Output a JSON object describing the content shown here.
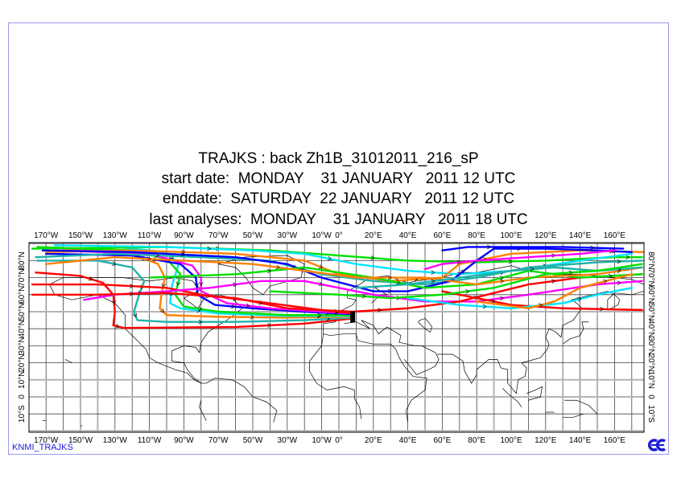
{
  "title": {
    "line1": "TRAJKS : back Zh1B_31012011_216_sP",
    "line2": "start date:  MONDAY    31 JANUARY   2011 12 UTC",
    "line3": "enddate:  SATURDAY  22 JANUARY   2011 12 UTC",
    "line4": "last analyses:  MONDAY    31 JANUARY   2011 18 UTC"
  },
  "footer": {
    "label": "KNMI_TRAJKS",
    "logo_icon": "ecmwf-logo-icon",
    "logo_color": "#1a1adc"
  },
  "map": {
    "lon_range": [
      -180,
      177
    ],
    "lat_range": [
      -20,
      90
    ],
    "lon_labels": [
      {
        "lon": -170,
        "text": "170°W"
      },
      {
        "lon": -150,
        "text": "150°W"
      },
      {
        "lon": -130,
        "text": "130°W"
      },
      {
        "lon": -110,
        "text": "110°W"
      },
      {
        "lon": -90,
        "text": "90°W"
      },
      {
        "lon": -70,
        "text": "70°W"
      },
      {
        "lon": -50,
        "text": "50°W"
      },
      {
        "lon": -30,
        "text": "30°W"
      },
      {
        "lon": -10,
        "text": "10°W"
      },
      {
        "lon": 0,
        "text": "0°"
      },
      {
        "lon": 20,
        "text": "20°E"
      },
      {
        "lon": 40,
        "text": "40°E"
      },
      {
        "lon": 60,
        "text": "60°E"
      },
      {
        "lon": 80,
        "text": "80°E"
      },
      {
        "lon": 100,
        "text": "100°E"
      },
      {
        "lon": 120,
        "text": "120°E"
      },
      {
        "lon": 140,
        "text": "140°E"
      },
      {
        "lon": 160,
        "text": "160°E"
      }
    ],
    "lat_labels": [
      {
        "lat": 80,
        "text": "80°N"
      },
      {
        "lat": 70,
        "text": "70°N"
      },
      {
        "lat": 60,
        "text": "60°N"
      },
      {
        "lat": 50,
        "text": "50°N"
      },
      {
        "lat": 40,
        "text": "40°N"
      },
      {
        "lat": 30,
        "text": "30°N"
      },
      {
        "lat": 20,
        "text": "20°N"
      },
      {
        "lat": 10,
        "text": "10°N"
      },
      {
        "lat": 0,
        "text": "0"
      },
      {
        "lat": -10,
        "text": "10°S"
      }
    ],
    "start_point": {
      "lon": 8,
      "lat": 47
    }
  },
  "trajectories": [
    {
      "color": "#ff0000",
      "points": [
        [
          -176,
          73
        ],
        [
          -150,
          71
        ],
        [
          -137,
          67
        ],
        [
          -131,
          60
        ],
        [
          -130,
          50
        ],
        [
          -131,
          42
        ],
        [
          -125,
          40.5
        ],
        [
          -60,
          41
        ],
        [
          -20,
          43
        ],
        [
          8,
          46
        ]
      ]
    },
    {
      "color": "#20b2aa",
      "points": [
        [
          -175,
          80
        ],
        [
          -140,
          80
        ],
        [
          -120,
          76
        ],
        [
          -113,
          68
        ],
        [
          -116,
          60
        ],
        [
          -119,
          50
        ],
        [
          -117,
          45
        ],
        [
          -100,
          44
        ],
        [
          -60,
          44
        ],
        [
          -20,
          45
        ],
        [
          8,
          46.5
        ]
      ]
    },
    {
      "color": "#ff8000",
      "points": [
        [
          -160,
          87
        ],
        [
          -120,
          84
        ],
        [
          -105,
          78
        ],
        [
          -101,
          70
        ],
        [
          -103,
          60
        ],
        [
          -104,
          52
        ],
        [
          -100,
          48
        ],
        [
          -70,
          47
        ],
        [
          -30,
          46.5
        ],
        [
          8,
          47
        ]
      ]
    },
    {
      "color": "#00e5ff",
      "points": [
        [
          -130,
          88
        ],
        [
          -100,
          85
        ],
        [
          -93,
          78
        ],
        [
          -97,
          65
        ],
        [
          -98,
          55
        ],
        [
          -92,
          52
        ],
        [
          -70,
          49
        ],
        [
          -30,
          47.5
        ],
        [
          8,
          47.5
        ]
      ]
    },
    {
      "color": "#00e000",
      "points": [
        [
          -175,
          88
        ],
        [
          -120,
          86
        ],
        [
          -100,
          81
        ],
        [
          -92,
          72
        ],
        [
          -95,
          60
        ],
        [
          -90,
          53
        ],
        [
          -70,
          50
        ],
        [
          -30,
          48
        ],
        [
          8,
          48
        ]
      ]
    },
    {
      "color": "#0000ff",
      "points": [
        [
          -170,
          84
        ],
        [
          -120,
          83
        ],
        [
          -92,
          78
        ],
        [
          -83,
          70
        ],
        [
          -82,
          60
        ],
        [
          -72,
          54
        ],
        [
          -50,
          52
        ],
        [
          -20,
          50
        ],
        [
          8,
          48.5
        ]
      ]
    },
    {
      "color": "#ff00ff",
      "points": [
        [
          -165,
          86
        ],
        [
          -110,
          84
        ],
        [
          -85,
          77
        ],
        [
          -80,
          70
        ],
        [
          -80,
          62
        ],
        [
          -65,
          55
        ],
        [
          -40,
          52
        ],
        [
          -10,
          50
        ],
        [
          8,
          49
        ]
      ]
    },
    {
      "color": "#ff0000",
      "points": [
        [
          -178,
          66
        ],
        [
          -140,
          66
        ],
        [
          -100,
          64
        ],
        [
          -80,
          60
        ],
        [
          -40,
          55
        ],
        [
          -10,
          51
        ],
        [
          8,
          49
        ]
      ]
    },
    {
      "color": "#ff00ff",
      "points": [
        [
          -148,
          57
        ],
        [
          -130,
          60
        ],
        [
          -100,
          62
        ],
        [
          -75,
          64
        ],
        [
          -45,
          68
        ],
        [
          -20,
          68
        ],
        [
          0,
          64
        ],
        [
          20,
          60
        ],
        [
          50,
          56
        ],
        [
          80,
          56
        ],
        [
          110,
          60
        ],
        [
          150,
          66
        ],
        [
          176,
          68
        ]
      ]
    },
    {
      "color": "#ff0000",
      "points": [
        [
          -178,
          60
        ],
        [
          -140,
          60
        ],
        [
          -100,
          61
        ],
        [
          -60,
          58
        ],
        [
          -30,
          52
        ],
        [
          8,
          50
        ],
        [
          40,
          52
        ],
        [
          70,
          56
        ],
        [
          90,
          61
        ],
        [
          110,
          66
        ],
        [
          140,
          70
        ],
        [
          176,
          72
        ]
      ]
    },
    {
      "color": "#ff0000",
      "points": [
        [
          60,
          62
        ],
        [
          80,
          58
        ],
        [
          100,
          54
        ],
        [
          130,
          52
        ],
        [
          176,
          51
        ]
      ]
    },
    {
      "color": "#00e000",
      "points": [
        [
          -178,
          87
        ],
        [
          -100,
          88
        ],
        [
          -40,
          86
        ],
        [
          0,
          83
        ],
        [
          40,
          80
        ],
        [
          80,
          79
        ],
        [
          120,
          80
        ],
        [
          160,
          82
        ],
        [
          176,
          82
        ]
      ]
    },
    {
      "color": "#00e5ff",
      "points": [
        [
          -165,
          89
        ],
        [
          -100,
          88
        ],
        [
          -50,
          86
        ],
        [
          -20,
          84
        ],
        [
          10,
          78
        ],
        [
          40,
          74
        ],
        [
          70,
          72
        ],
        [
          100,
          74
        ],
        [
          140,
          80
        ],
        [
          170,
          84
        ]
      ]
    },
    {
      "color": "#20b2aa",
      "points": [
        [
          -176,
          82
        ],
        [
          -130,
          84
        ],
        [
          -80,
          82
        ],
        [
          -40,
          80
        ],
        [
          -10,
          72
        ],
        [
          20,
          68
        ],
        [
          50,
          66
        ],
        [
          80,
          70
        ],
        [
          110,
          76
        ],
        [
          150,
          79
        ],
        [
          176,
          80
        ]
      ]
    },
    {
      "color": "#ff8000",
      "points": [
        [
          -170,
          85
        ],
        [
          -120,
          86
        ],
        [
          -60,
          84
        ],
        [
          -20,
          80
        ],
        [
          0,
          72
        ],
        [
          30,
          68
        ],
        [
          60,
          70
        ],
        [
          70,
          78
        ],
        [
          100,
          84
        ],
        [
          140,
          86
        ],
        [
          177,
          85
        ]
      ]
    },
    {
      "color": "#0000ff",
      "points": [
        [
          -172,
          86
        ],
        [
          -120,
          85
        ],
        [
          -60,
          82
        ],
        [
          -30,
          78
        ],
        [
          -10,
          70
        ],
        [
          20,
          62
        ],
        [
          40,
          62
        ],
        [
          65,
          68
        ],
        [
          80,
          80
        ],
        [
          90,
          87
        ],
        [
          120,
          87
        ],
        [
          150,
          86
        ],
        [
          170,
          85
        ]
      ]
    },
    {
      "color": "#0000ff",
      "points": [
        [
          60,
          86
        ],
        [
          75,
          88
        ],
        [
          100,
          88
        ],
        [
          130,
          88
        ],
        [
          165,
          87
        ]
      ]
    },
    {
      "color": "#ff00ff",
      "points": [
        [
          50,
          75
        ],
        [
          60,
          78
        ],
        [
          80,
          80
        ],
        [
          110,
          82
        ],
        [
          140,
          84
        ],
        [
          160,
          86
        ]
      ]
    },
    {
      "color": "#00e000",
      "points": [
        [
          -110,
          70
        ],
        [
          -60,
          72
        ],
        [
          -20,
          76
        ],
        [
          20,
          70
        ],
        [
          50,
          64
        ],
        [
          80,
          66
        ],
        [
          110,
          74
        ],
        [
          140,
          70
        ],
        [
          176,
          72
        ]
      ]
    },
    {
      "color": "#00e5ff",
      "points": [
        [
          40,
          58
        ],
        [
          70,
          54
        ],
        [
          100,
          52
        ],
        [
          130,
          55
        ],
        [
          150,
          60
        ],
        [
          170,
          64
        ]
      ]
    },
    {
      "color": "#ff8000",
      "points": [
        [
          -170,
          78
        ],
        [
          -130,
          82
        ],
        [
          -90,
          80
        ],
        [
          -50,
          78
        ],
        [
          -20,
          74
        ],
        [
          10,
          70
        ],
        [
          50,
          70
        ],
        [
          80,
          66
        ],
        [
          110,
          70
        ],
        [
          150,
          72
        ],
        [
          176,
          76
        ]
      ]
    },
    {
      "color": "#ff8000",
      "points": [
        [
          80,
          56
        ],
        [
          110,
          52
        ],
        [
          125,
          56
        ],
        [
          140,
          64
        ],
        [
          170,
          72
        ]
      ]
    },
    {
      "color": "#20b2aa",
      "points": [
        [
          10,
          64
        ],
        [
          40,
          66
        ],
        [
          70,
          70
        ],
        [
          100,
          74
        ],
        [
          125,
          76
        ],
        [
          150,
          74
        ],
        [
          176,
          76
        ]
      ]
    },
    {
      "color": "#00e000",
      "points": [
        [
          -40,
          62
        ],
        [
          0,
          60
        ],
        [
          30,
          58
        ],
        [
          60,
          60
        ],
        [
          90,
          64
        ],
        [
          120,
          72
        ],
        [
          150,
          74
        ],
        [
          176,
          78
        ]
      ]
    }
  ]
}
